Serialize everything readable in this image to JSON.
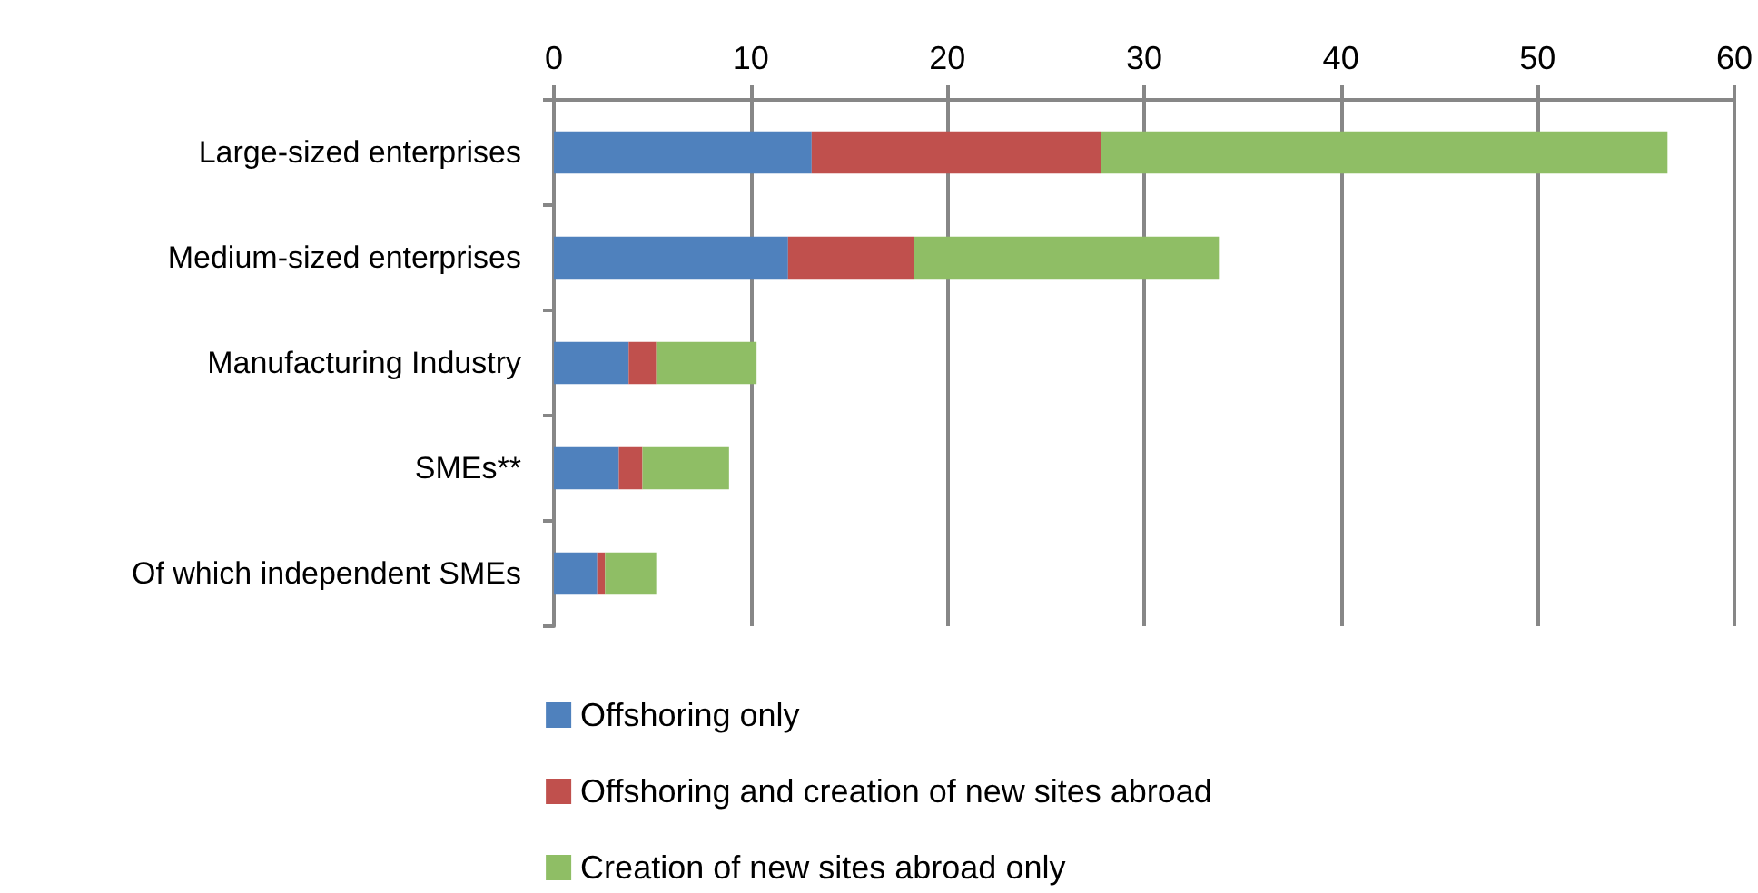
{
  "chart_data": {
    "type": "bar",
    "orientation": "horizontal",
    "stacked": true,
    "categories": [
      "Large-sized enterprises",
      "Medium-sized enterprises",
      "Manufacturing Industry",
      "SMEs**",
      "Of which independent SMEs"
    ],
    "series": [
      {
        "name": "Offshoring only",
        "color": "#4f81bd",
        "values": [
          13.1,
          11.9,
          3.8,
          3.3,
          2.2
        ]
      },
      {
        "name": "Offshoring and creation of new sites abroad",
        "color": "#c0504d",
        "values": [
          14.7,
          6.4,
          1.4,
          1.2,
          0.4
        ]
      },
      {
        "name": "Creation of new sites abroad only",
        "color": "#8fbe65",
        "values": [
          28.8,
          15.5,
          5.1,
          4.4,
          2.6
        ]
      }
    ],
    "xlim": [
      0,
      60
    ],
    "xticks": [
      0,
      10,
      20,
      30,
      40,
      50,
      60
    ],
    "grid": "x",
    "legend": "bottom"
  }
}
